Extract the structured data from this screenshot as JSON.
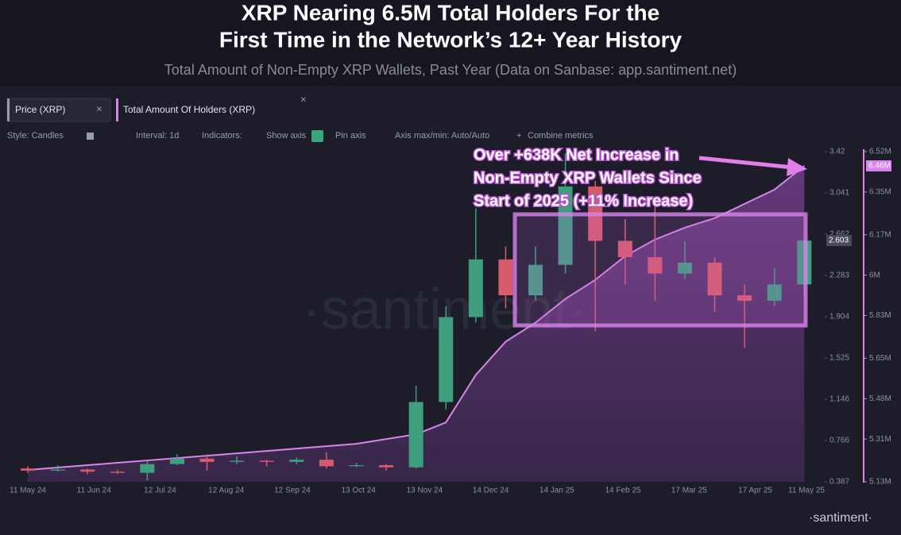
{
  "header": {
    "title": [
      "XRP Nearing 6.5M Total Holders For the",
      "First Time in the Network’s 12+ Year History"
    ],
    "subtitle": "Total Amount of Non-Empty XRP Wallets, Past Year (Data on Sanbase: app.santiment.net)"
  },
  "toolbar": [
    "Style: Candles",
    "Interval: 1d",
    "Indicators:",
    "Show axis",
    "Pin axis",
    "Axis max/min: Auto/Auto",
    "Combine metrics"
  ],
  "watermark": "·santiment·",
  "logo": "·santiment·",
  "chart_data": {
    "type": "candlestick",
    "annotation": [
      "Over +638K Net Increase in",
      "Non-Empty XRP Wallets Since",
      "Start of 2025 (+11% Increase)"
    ],
    "x": [
      "11 May 24",
      "25 May 24",
      "8 Jun 24",
      "22 Jun 24",
      "6 Jul 24",
      "20 Jul 24",
      "3 Aug 24",
      "17 Aug 24",
      "31 Aug 24",
      "14 Sep 24",
      "28 Sep 24",
      "12 Oct 24",
      "26 Oct 24",
      "9 Nov 24",
      "23 Nov 24",
      "7 Dec 24",
      "21 Dec 24",
      "4 Jan 25",
      "18 Jan 25",
      "1 Feb 25",
      "15 Feb 25",
      "1 Mar 25",
      "15 Mar 25",
      "29 Mar 25",
      "12 Apr 25",
      "26 Apr 25",
      "10 May 25"
    ],
    "series": [
      {
        "name": "Price (XRP)",
        "type": "candlestick",
        "colors": {
          "up": "#3f9e7e",
          "down": "#d65b6b"
        },
        "open": [
          0.51,
          0.49,
          0.5,
          0.48,
          0.47,
          0.55,
          0.6,
          0.57,
          0.58,
          0.57,
          0.59,
          0.53,
          0.54,
          0.52,
          1.12,
          1.9,
          2.43,
          2.1,
          2.38,
          3.1,
          2.6,
          2.45,
          2.3,
          2.4,
          2.1,
          2.05,
          2.2
        ],
        "high": [
          0.53,
          0.54,
          0.51,
          0.5,
          0.58,
          0.64,
          0.64,
          0.62,
          0.59,
          0.61,
          0.66,
          0.56,
          0.55,
          1.27,
          2.0,
          2.9,
          2.55,
          2.55,
          3.4,
          3.15,
          2.8,
          3.0,
          2.6,
          2.45,
          2.2,
          2.35,
          2.62
        ],
        "low": [
          0.47,
          0.48,
          0.46,
          0.46,
          0.4,
          0.54,
          0.49,
          0.55,
          0.53,
          0.55,
          0.51,
          0.52,
          0.49,
          0.51,
          1.05,
          1.85,
          1.98,
          2.05,
          2.3,
          1.77,
          2.2,
          2.05,
          2.25,
          1.95,
          1.62,
          2.0,
          2.1
        ],
        "close": [
          0.49,
          0.5,
          0.48,
          0.47,
          0.55,
          0.6,
          0.57,
          0.58,
          0.57,
          0.59,
          0.53,
          0.54,
          0.52,
          1.12,
          1.9,
          2.43,
          2.1,
          2.38,
          3.1,
          2.6,
          2.45,
          2.3,
          2.4,
          2.1,
          2.05,
          2.2,
          2.603
        ],
        "last_label": "2.603"
      },
      {
        "name": "Total Amount Of Holders (XRP)",
        "type": "area",
        "axis": "y2",
        "color": "#d884ec",
        "values": [
          5180000,
          5190000,
          5200000,
          5210000,
          5220000,
          5230000,
          5240000,
          5250000,
          5260000,
          5270000,
          5280000,
          5290000,
          5310000,
          5330000,
          5380000,
          5580000,
          5720000,
          5800000,
          5900000,
          5980000,
          6080000,
          6150000,
          6200000,
          6240000,
          6300000,
          6360000,
          6460000
        ],
        "last_label": "6.46M"
      }
    ],
    "xticks": [
      "11 May 24",
      "11 Jun 24",
      "12 Jul 24",
      "12 Aug 24",
      "12 Sep 24",
      "13 Oct 24",
      "13 Nov 24",
      "14 Dec 24",
      "14 Jan 25",
      "14 Feb 25",
      "17 Mar 25",
      "17 Apr 25",
      "11 May 25"
    ],
    "ylim": [
      0.387,
      3.42
    ],
    "yticks": [
      0.387,
      0.766,
      1.146,
      1.525,
      1.904,
      2.283,
      2.662,
      3.041,
      3.42
    ],
    "y2lim": [
      5130000,
      6520000
    ],
    "y2ticks": [
      {
        "value": 5130000,
        "label": "5.13M"
      },
      {
        "value": 5310000,
        "label": "5.31M"
      },
      {
        "value": 5480000,
        "label": "5.48M"
      },
      {
        "value": 5650000,
        "label": "5.65M"
      },
      {
        "value": 5830000,
        "label": "5.83M"
      },
      {
        "value": 6000000,
        "label": "6M"
      },
      {
        "value": 6170000,
        "label": "6.17M"
      },
      {
        "value": 6350000,
        "label": "6.35M"
      },
      {
        "value": 6520000,
        "label": "6.52M"
      }
    ]
  }
}
